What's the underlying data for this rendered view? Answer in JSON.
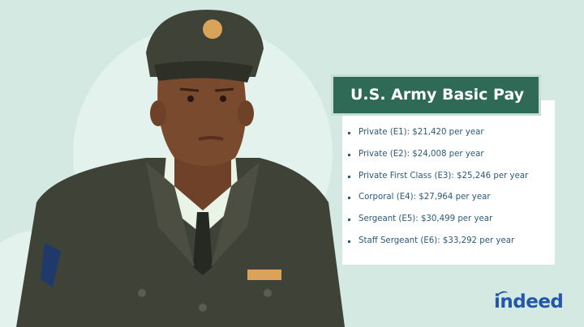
{
  "card": {
    "title": "U.S. Army Basic Pay",
    "items": [
      "Private (E1): $21,420 per year",
      "Private (E2): $24,008 per year",
      "Private First Class (E3): $25,246 per year",
      "Corporal (E4): $27,964 per year",
      "Sergeant (E5): $30,499 per year",
      "Staff Sergeant (E6): $33,292 per year"
    ]
  },
  "logo": "indeed",
  "colors": {
    "background": "#d3e9e2",
    "header": "#2e6a55",
    "text": "#2a5a78",
    "brand": "#2557a7"
  }
}
